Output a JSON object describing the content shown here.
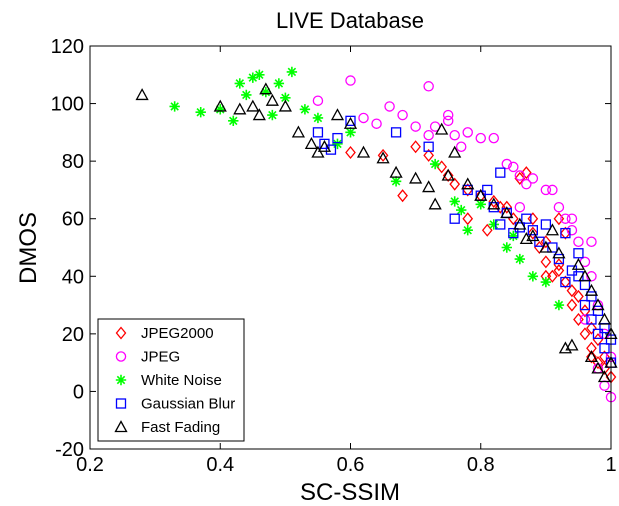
{
  "chart_data": {
    "type": "scatter",
    "title": "LIVE Database",
    "xlabel": "SC-SSIM",
    "ylabel": "DMOS",
    "xlim": [
      0.2,
      1.0
    ],
    "ylim": [
      -20,
      120
    ],
    "xticks": [
      0.2,
      0.4,
      0.6,
      0.8,
      1.0
    ],
    "xtick_labels": [
      "0.2",
      "0.4",
      "0.6",
      "0.8",
      "1"
    ],
    "yticks": [
      -20,
      0,
      20,
      40,
      60,
      80,
      100,
      120
    ],
    "ytick_labels": [
      "-20",
      "0",
      "20",
      "40",
      "60",
      "80",
      "100",
      "120"
    ],
    "grid": false,
    "legend_position": "bottom-left",
    "series": [
      {
        "name": "JPEG2000",
        "marker": "diamond",
        "color": "#ff0000",
        "points": [
          [
            0.6,
            83
          ],
          [
            0.65,
            82
          ],
          [
            0.68,
            68
          ],
          [
            0.7,
            85
          ],
          [
            0.72,
            82
          ],
          [
            0.74,
            78
          ],
          [
            0.75,
            75
          ],
          [
            0.76,
            72
          ],
          [
            0.78,
            70
          ],
          [
            0.8,
            68
          ],
          [
            0.82,
            66
          ],
          [
            0.84,
            64
          ],
          [
            0.85,
            60
          ],
          [
            0.86,
            74
          ],
          [
            0.88,
            60
          ],
          [
            0.88,
            55
          ],
          [
            0.89,
            50
          ],
          [
            0.9,
            52
          ],
          [
            0.9,
            45
          ],
          [
            0.91,
            40
          ],
          [
            0.92,
            42
          ],
          [
            0.92,
            60
          ],
          [
            0.93,
            38
          ],
          [
            0.93,
            55
          ],
          [
            0.94,
            35
          ],
          [
            0.94,
            30
          ],
          [
            0.95,
            33
          ],
          [
            0.95,
            25
          ],
          [
            0.96,
            28
          ],
          [
            0.96,
            20
          ],
          [
            0.97,
            22
          ],
          [
            0.97,
            15
          ],
          [
            0.98,
            18
          ],
          [
            0.98,
            10
          ],
          [
            0.99,
            12
          ],
          [
            0.99,
            8
          ],
          [
            1.0,
            5
          ],
          [
            0.87,
            76
          ],
          [
            0.83,
            64
          ],
          [
            0.78,
            60
          ],
          [
            0.81,
            56
          ],
          [
            0.9,
            40
          ],
          [
            0.92,
            44
          ],
          [
            0.97,
            12
          ]
        ]
      },
      {
        "name": "JPEG",
        "marker": "circle",
        "color": "#ff00ff",
        "points": [
          [
            0.55,
            101
          ],
          [
            0.6,
            108
          ],
          [
            0.62,
            95
          ],
          [
            0.64,
            93
          ],
          [
            0.66,
            99
          ],
          [
            0.68,
            96
          ],
          [
            0.7,
            92
          ],
          [
            0.72,
            89
          ],
          [
            0.73,
            92
          ],
          [
            0.75,
            94
          ],
          [
            0.76,
            89
          ],
          [
            0.77,
            85
          ],
          [
            0.78,
            90
          ],
          [
            0.8,
            88
          ],
          [
            0.82,
            88
          ],
          [
            0.84,
            79
          ],
          [
            0.85,
            78
          ],
          [
            0.86,
            75
          ],
          [
            0.87,
            72
          ],
          [
            0.88,
            74
          ],
          [
            0.9,
            70
          ],
          [
            0.91,
            70
          ],
          [
            0.92,
            64
          ],
          [
            0.93,
            60
          ],
          [
            0.94,
            56
          ],
          [
            0.95,
            52
          ],
          [
            0.96,
            45
          ],
          [
            0.97,
            40
          ],
          [
            0.98,
            30
          ],
          [
            0.99,
            20
          ],
          [
            1.0,
            12
          ],
          [
            1.0,
            -2
          ],
          [
            0.99,
            2
          ],
          [
            0.98,
            8
          ],
          [
            0.96,
            25
          ],
          [
            0.94,
            60
          ],
          [
            0.72,
            106
          ],
          [
            0.75,
            96
          ],
          [
            0.86,
            64
          ],
          [
            0.97,
            52
          ]
        ]
      },
      {
        "name": "White Noise",
        "marker": "star",
        "color": "#00ff00",
        "points": [
          [
            0.33,
            99
          ],
          [
            0.37,
            97
          ],
          [
            0.4,
            98
          ],
          [
            0.42,
            94
          ],
          [
            0.43,
            107
          ],
          [
            0.44,
            103
          ],
          [
            0.45,
            109
          ],
          [
            0.46,
            110
          ],
          [
            0.47,
            104
          ],
          [
            0.48,
            96
          ],
          [
            0.49,
            107
          ],
          [
            0.5,
            102
          ],
          [
            0.51,
            111
          ],
          [
            0.53,
            98
          ],
          [
            0.55,
            95
          ],
          [
            0.58,
            86
          ],
          [
            0.6,
            90
          ],
          [
            0.67,
            73
          ],
          [
            0.73,
            79
          ],
          [
            0.76,
            66
          ],
          [
            0.8,
            65
          ],
          [
            0.82,
            58
          ],
          [
            0.84,
            50
          ],
          [
            0.86,
            46
          ],
          [
            0.88,
            40
          ],
          [
            0.9,
            38
          ],
          [
            0.92,
            30
          ],
          [
            0.78,
            56
          ],
          [
            0.85,
            54
          ],
          [
            0.77,
            63
          ]
        ]
      },
      {
        "name": "Gaussian Blur",
        "marker": "square",
        "color": "#0000ff",
        "points": [
          [
            0.55,
            90
          ],
          [
            0.56,
            86
          ],
          [
            0.57,
            84
          ],
          [
            0.58,
            88
          ],
          [
            0.6,
            94
          ],
          [
            0.67,
            90
          ],
          [
            0.72,
            85
          ],
          [
            0.76,
            60
          ],
          [
            0.78,
            70
          ],
          [
            0.8,
            68
          ],
          [
            0.82,
            64
          ],
          [
            0.83,
            58
          ],
          [
            0.84,
            62
          ],
          [
            0.85,
            55
          ],
          [
            0.86,
            57
          ],
          [
            0.87,
            60
          ],
          [
            0.88,
            56
          ],
          [
            0.89,
            52
          ],
          [
            0.9,
            58
          ],
          [
            0.91,
            50
          ],
          [
            0.92,
            46
          ],
          [
            0.93,
            55
          ],
          [
            0.94,
            42
          ],
          [
            0.95,
            40
          ],
          [
            0.96,
            37
          ],
          [
            0.96,
            30
          ],
          [
            0.97,
            33
          ],
          [
            0.97,
            25
          ],
          [
            0.98,
            28
          ],
          [
            0.98,
            20
          ],
          [
            0.99,
            22
          ],
          [
            0.99,
            15
          ],
          [
            1.0,
            18
          ],
          [
            1.0,
            10
          ],
          [
            0.95,
            48
          ],
          [
            0.93,
            38
          ],
          [
            0.83,
            76
          ],
          [
            0.81,
            70
          ]
        ]
      },
      {
        "name": "Fast Fading",
        "marker": "triangle",
        "color": "#000000",
        "points": [
          [
            0.28,
            103
          ],
          [
            0.4,
            99
          ],
          [
            0.43,
            98
          ],
          [
            0.46,
            96
          ],
          [
            0.47,
            105
          ],
          [
            0.48,
            101
          ],
          [
            0.5,
            99
          ],
          [
            0.52,
            90
          ],
          [
            0.54,
            86
          ],
          [
            0.55,
            83
          ],
          [
            0.58,
            96
          ],
          [
            0.6,
            93
          ],
          [
            0.62,
            83
          ],
          [
            0.65,
            81
          ],
          [
            0.67,
            76
          ],
          [
            0.7,
            74
          ],
          [
            0.72,
            71
          ],
          [
            0.74,
            91
          ],
          [
            0.75,
            75
          ],
          [
            0.76,
            83
          ],
          [
            0.78,
            72
          ],
          [
            0.8,
            68
          ],
          [
            0.82,
            65
          ],
          [
            0.84,
            62
          ],
          [
            0.86,
            58
          ],
          [
            0.88,
            54
          ],
          [
            0.9,
            50
          ],
          [
            0.92,
            48
          ],
          [
            0.93,
            15
          ],
          [
            0.94,
            16
          ],
          [
            0.95,
            44
          ],
          [
            0.96,
            40
          ],
          [
            0.97,
            35
          ],
          [
            0.97,
            12
          ],
          [
            0.98,
            30
          ],
          [
            0.98,
            8
          ],
          [
            0.99,
            25
          ],
          [
            0.99,
            5
          ],
          [
            1.0,
            20
          ],
          [
            1.0,
            10
          ],
          [
            0.45,
            99
          ],
          [
            0.56,
            85
          ],
          [
            0.73,
            65
          ],
          [
            0.87,
            53
          ],
          [
            0.91,
            56
          ]
        ]
      }
    ]
  }
}
